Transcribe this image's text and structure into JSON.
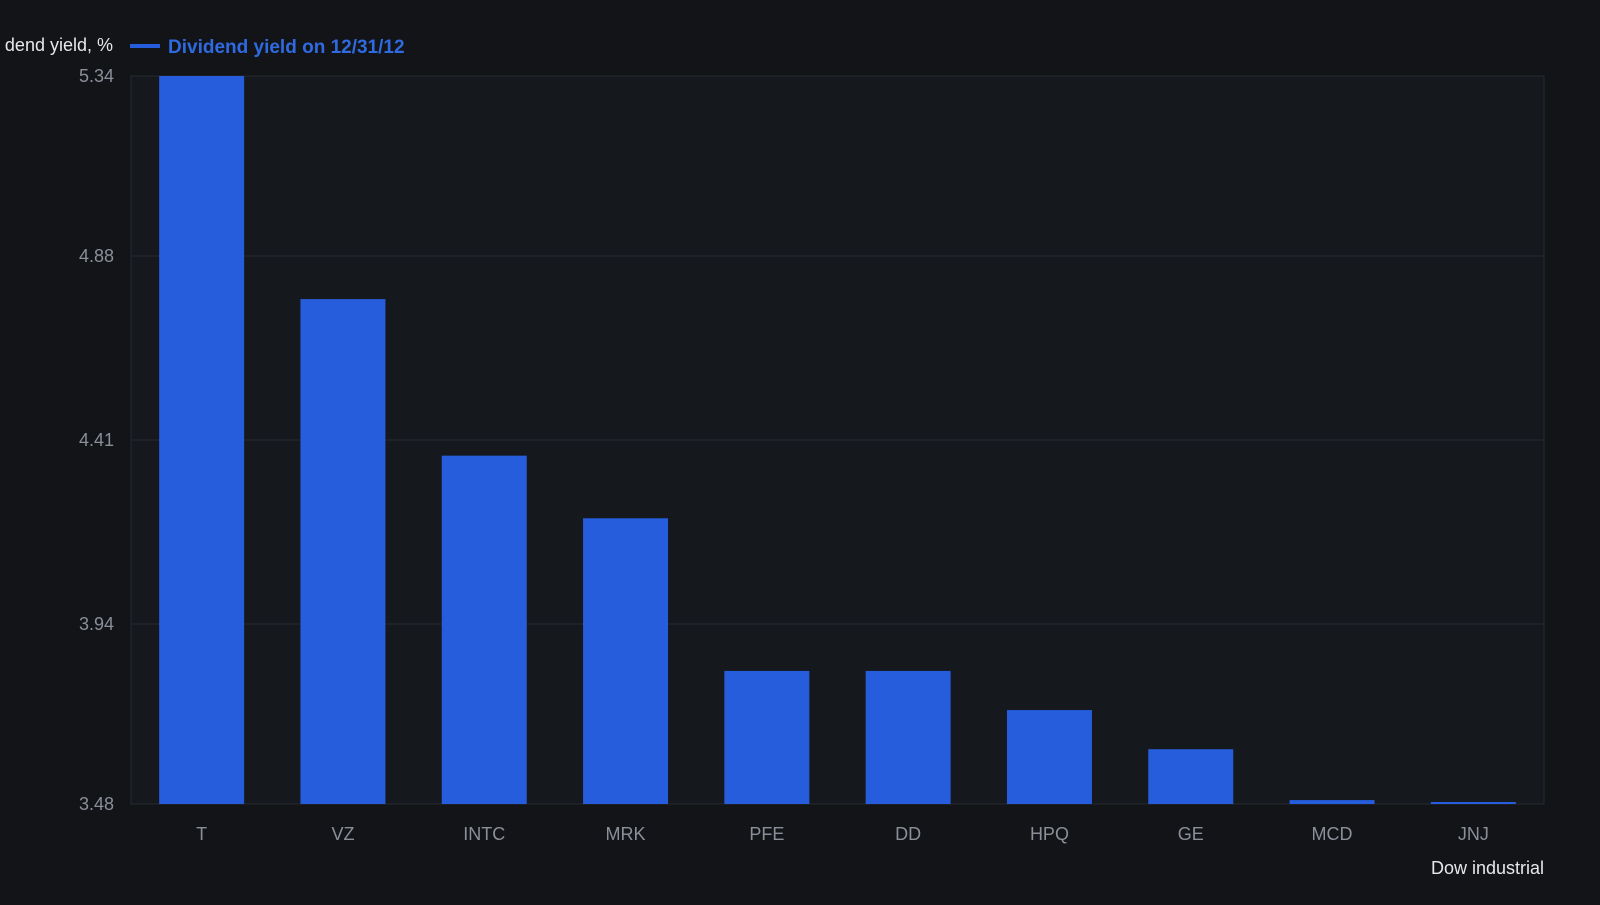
{
  "colors": {
    "background": "#121418",
    "plot_background": "#15181d",
    "bar": "#265ddd",
    "legend_text": "#2f6ae0",
    "grid": "#262a31",
    "axis_text": "#8a8f98",
    "label_text": "#e6e8eb"
  },
  "chart_data": {
    "type": "bar",
    "categories": [
      "T",
      "VZ",
      "INTC",
      "MRK",
      "PFE",
      "DD",
      "HPQ",
      "GE",
      "MCD",
      "JNJ"
    ],
    "series": [
      {
        "name": "Dividend yield on 12/31/12",
        "values": [
          5.34,
          4.77,
          4.37,
          4.21,
          3.82,
          3.82,
          3.72,
          3.62,
          3.49,
          3.48
        ]
      }
    ],
    "xlabel": "Dow industrial",
    "ylabel": "dend yield, %",
    "ylim": [
      3.48,
      5.34
    ],
    "yticks": [
      "3.48",
      "3.94",
      "4.41",
      "4.88",
      "5.34"
    ],
    "grid": true,
    "legend_position": "top-left"
  }
}
